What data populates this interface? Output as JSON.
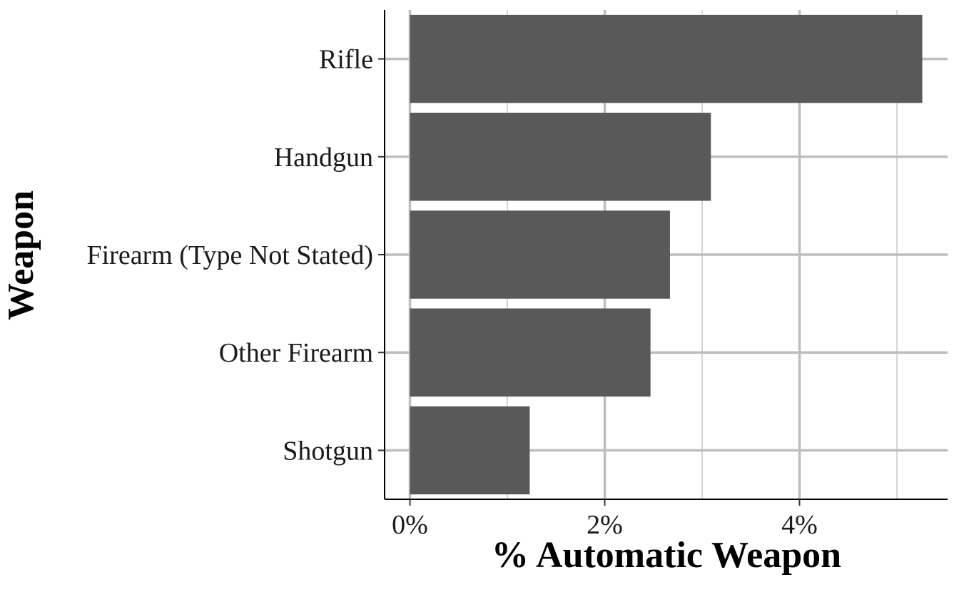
{
  "chart_data": {
    "type": "bar",
    "orientation": "horizontal",
    "xlabel": "% Automatic Weapon",
    "ylabel": "Weapon",
    "categories": [
      "Rifle",
      "Handgun",
      "Firearm (Type Not Stated)",
      "Other Firearm",
      "Shotgun"
    ],
    "values": [
      5.26,
      3.09,
      2.67,
      2.47,
      1.23
    ],
    "x_ticks": [
      0,
      2,
      4
    ],
    "x_tick_labels": [
      "0%",
      "2%",
      "4%"
    ],
    "xlim": [
      -0.26,
      5.52
    ],
    "grid": true,
    "legend": "none",
    "colors": {
      "bar": "#595959",
      "grid": "#bebebe",
      "axis": "#000000"
    }
  }
}
